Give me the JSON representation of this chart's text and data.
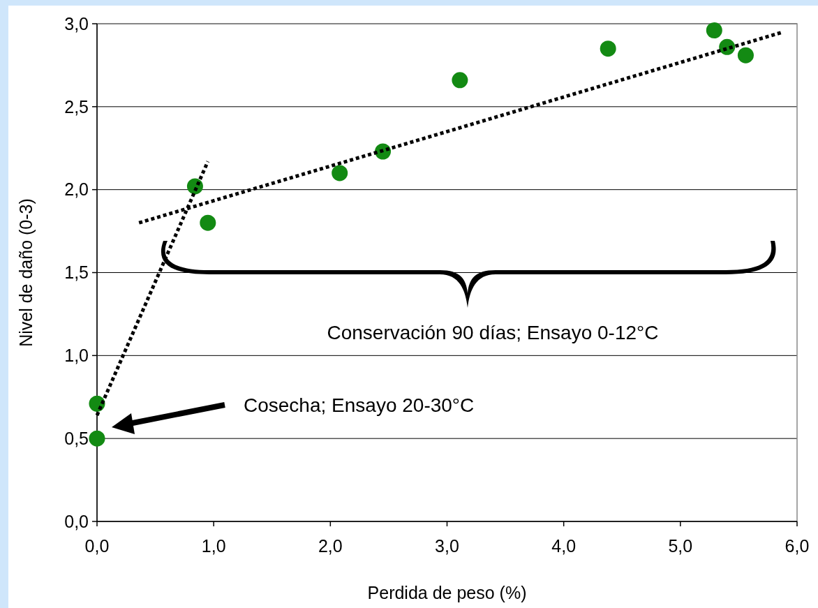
{
  "chart_data": {
    "type": "scatter",
    "xlabel": "Perdida de peso (%)",
    "ylabel": "Nivel de daño (0-3)",
    "xlim": [
      0,
      6
    ],
    "ylim": [
      0,
      3
    ],
    "xticks": [
      {
        "value": 0,
        "label": "0,0"
      },
      {
        "value": 1,
        "label": "1,0"
      },
      {
        "value": 2,
        "label": "2,0"
      },
      {
        "value": 3,
        "label": "3,0"
      },
      {
        "value": 4,
        "label": "4,0"
      },
      {
        "value": 5,
        "label": "5,0"
      },
      {
        "value": 6,
        "label": "6,0"
      }
    ],
    "yticks": [
      {
        "value": 0,
        "label": "0,0"
      },
      {
        "value": 0.5,
        "label": "0,5"
      },
      {
        "value": 1,
        "label": "1,0"
      },
      {
        "value": 1.5,
        "label": "1,5"
      },
      {
        "value": 2,
        "label": "2,0"
      },
      {
        "value": 2.5,
        "label": "2,5"
      },
      {
        "value": 3,
        "label": "3,0"
      }
    ],
    "grid": "y",
    "marker": "circle",
    "series": [
      {
        "type": "scatter",
        "color": "#138a13",
        "x": [
          0,
          0,
          0.84,
          0.95,
          2.08,
          2.45,
          3.11,
          4.38,
          5.29,
          5.4,
          5.56
        ],
        "values": [
          0.71,
          0.5,
          2.02,
          1.8,
          2.1,
          2.23,
          2.66,
          2.85,
          2.96,
          2.86,
          2.81
        ]
      },
      {
        "type": "line",
        "color": "#000000",
        "line_style": "dotted",
        "marker": "none",
        "x": [
          0,
          0.95
        ],
        "values": [
          0.64,
          2.17
        ]
      },
      {
        "type": "line",
        "color": "#000000",
        "line_style": "dotted",
        "marker": "none",
        "x": [
          0.36,
          5.88
        ],
        "values": [
          1.8,
          2.95
        ]
      }
    ],
    "annotations": [
      "Conservación 90 días; Ensayo 0-12°C",
      "Cosecha; Ensayo 20-30°C"
    ]
  }
}
